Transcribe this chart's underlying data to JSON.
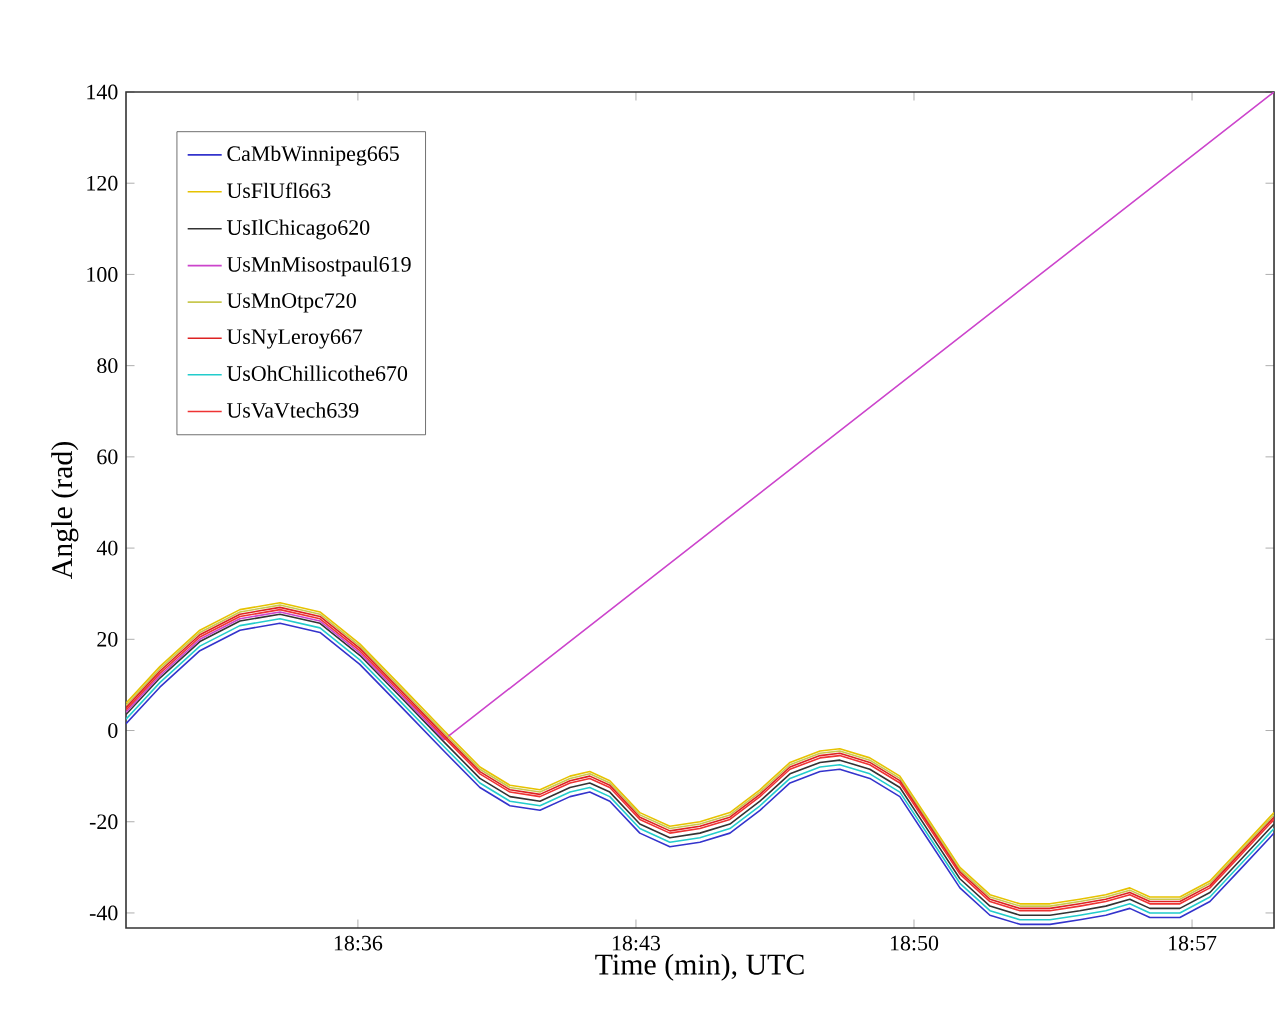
{
  "chart_data": {
    "type": "line",
    "xlabel": "Time (min), UTC",
    "ylabel": "Angle (rad)",
    "x": [
      18.5027,
      18.5169,
      18.5337,
      18.5505,
      18.5673,
      18.5841,
      18.6008,
      18.6176,
      18.6361,
      18.6512,
      18.6638,
      18.6764,
      18.689,
      18.6973,
      18.7057,
      18.7183,
      18.7309,
      18.7435,
      18.7561,
      18.7687,
      18.7813,
      18.7939,
      18.8022,
      18.8148,
      18.8274,
      18.84,
      18.8526,
      18.8652,
      18.8778,
      18.8904,
      18.9029,
      18.9138,
      18.9239,
      18.9323,
      18.9449,
      18.9575,
      18.9701,
      18.9844
    ],
    "series": [
      {
        "name": "CaMbWinnipeg665",
        "color": "#3333cc",
        "values": [
          1.5,
          9.5,
          17.5,
          22,
          23.5,
          21.5,
          14.5,
          5.5,
          -4.5,
          -12.5,
          -16.5,
          -17.5,
          -14.5,
          -13.5,
          -15.5,
          -22.5,
          -25.5,
          -24.5,
          -22.5,
          -17.5,
          -11.5,
          -9,
          -8.5,
          -10.5,
          -14.5,
          -24.5,
          -34.5,
          -40.5,
          -42.5,
          -42.5,
          -41.5,
          -40.5,
          -39,
          -41,
          -41,
          -37.5,
          -30.5,
          -22.5
        ]
      },
      {
        "name": "UsFlUfl663",
        "color": "#e6c200",
        "values": [
          6,
          14,
          22,
          26.5,
          28,
          26,
          19,
          10,
          0,
          -8,
          -12,
          -13,
          -10,
          -9,
          -11,
          -18,
          -21,
          -20,
          -18,
          -13,
          -7,
          -4.5,
          -4,
          -6,
          -10,
          -20,
          -30,
          -36,
          -38,
          -38,
          -37,
          -36,
          -34.5,
          -36.5,
          -36.5,
          -33,
          -26,
          -18
        ]
      },
      {
        "name": "UsIlChicago620",
        "color": "#333333",
        "values": [
          3.5,
          11.5,
          19.5,
          24,
          25.5,
          23.5,
          16.5,
          7.5,
          -2.5,
          -10.5,
          -14.5,
          -15.5,
          -12.5,
          -11.5,
          -13.5,
          -20.5,
          -23.5,
          -22.5,
          -20.5,
          -15.5,
          -9.5,
          -7,
          -6.5,
          -8.5,
          -12.5,
          -22.5,
          -32.5,
          -38.5,
          -40.5,
          -40.5,
          -39.5,
          -38.5,
          -37,
          -39,
          -39,
          -35.5,
          -28.5,
          -20.5
        ]
      },
      {
        "name": "UsMnMisostpaul619",
        "color": "#cc44cc",
        "x": [
          18.5027,
          18.5169,
          18.5337,
          18.5505,
          18.5673,
          18.5841,
          18.6008,
          18.6176,
          18.6361,
          18.9844
        ],
        "values": [
          4,
          12,
          20,
          24.5,
          26,
          24,
          17,
          8,
          -2,
          140
        ]
      },
      {
        "name": "UsMnOtpc720",
        "color": "#c8c850",
        "values": [
          5.5,
          13.5,
          21.5,
          26,
          27.5,
          25.5,
          18.5,
          9.5,
          -0.5,
          -8.5,
          -12.5,
          -13.5,
          -10.5,
          -9.5,
          -11.5,
          -18.5,
          -21.5,
          -20.5,
          -18.5,
          -13.5,
          -7.5,
          -5,
          -4.5,
          -6.5,
          -10.5,
          -20.5,
          -30.5,
          -36.5,
          -38.5,
          -38.5,
          -37.5,
          -36.5,
          -35,
          -37,
          -37,
          -33.5,
          -26.5,
          -18.5
        ]
      },
      {
        "name": "UsNyLeroy667",
        "color": "#dd2222",
        "values": [
          5,
          13,
          21,
          25.5,
          27,
          25,
          18,
          9,
          -1,
          -9,
          -13,
          -14,
          -11,
          -10,
          -12,
          -19,
          -22,
          -21,
          -19,
          -14,
          -8,
          -5.5,
          -5,
          -7,
          -11,
          -21,
          -31,
          -37,
          -39,
          -39,
          -38,
          -37,
          -35.5,
          -37.5,
          -37.5,
          -34,
          -27,
          -19
        ]
      },
      {
        "name": "UsOhChillicothe670",
        "color": "#22cccc",
        "values": [
          2.5,
          10.5,
          18.5,
          23,
          24.5,
          22.5,
          15.5,
          6.5,
          -3.5,
          -11.5,
          -15.5,
          -16.5,
          -13.5,
          -12.5,
          -14.5,
          -21.5,
          -24.5,
          -23.5,
          -21.5,
          -16.5,
          -10.5,
          -8,
          -7.5,
          -9.5,
          -13.5,
          -23.5,
          -33.5,
          -39.5,
          -41.5,
          -41.5,
          -40.5,
          -39.5,
          -38,
          -40,
          -40,
          -36.5,
          -29.5,
          -21.5
        ]
      },
      {
        "name": "UsVaVtech639",
        "color": "#ee3333",
        "values": [
          4.5,
          12.5,
          20.5,
          25,
          26.5,
          24.5,
          17.5,
          8.5,
          -1.5,
          -9.5,
          -13.5,
          -14.5,
          -11.5,
          -10.5,
          -12.5,
          -19.5,
          -22.5,
          -21.5,
          -19.5,
          -14.5,
          -8.5,
          -6,
          -5.5,
          -7.5,
          -11.5,
          -21.5,
          -31.5,
          -37.5,
          -39.5,
          -39.5,
          -38.5,
          -37.5,
          -36,
          -38,
          -38,
          -34.5,
          -27.5,
          -19.5
        ]
      }
    ],
    "xlim": [
      18.5027,
      18.9844
    ],
    "ylim": [
      -43.3,
      140
    ],
    "xticks": [
      {
        "value": 18.6,
        "label": "18:36"
      },
      {
        "value": 18.71667,
        "label": "18:43"
      },
      {
        "value": 18.83333,
        "label": "18:50"
      },
      {
        "value": 18.95,
        "label": "18:57"
      }
    ],
    "yticks": [
      -40,
      -20,
      0,
      20,
      40,
      60,
      80,
      100,
      120,
      140
    ],
    "legend": "top left",
    "grid": false,
    "marker": "none",
    "line_style": "solid"
  }
}
